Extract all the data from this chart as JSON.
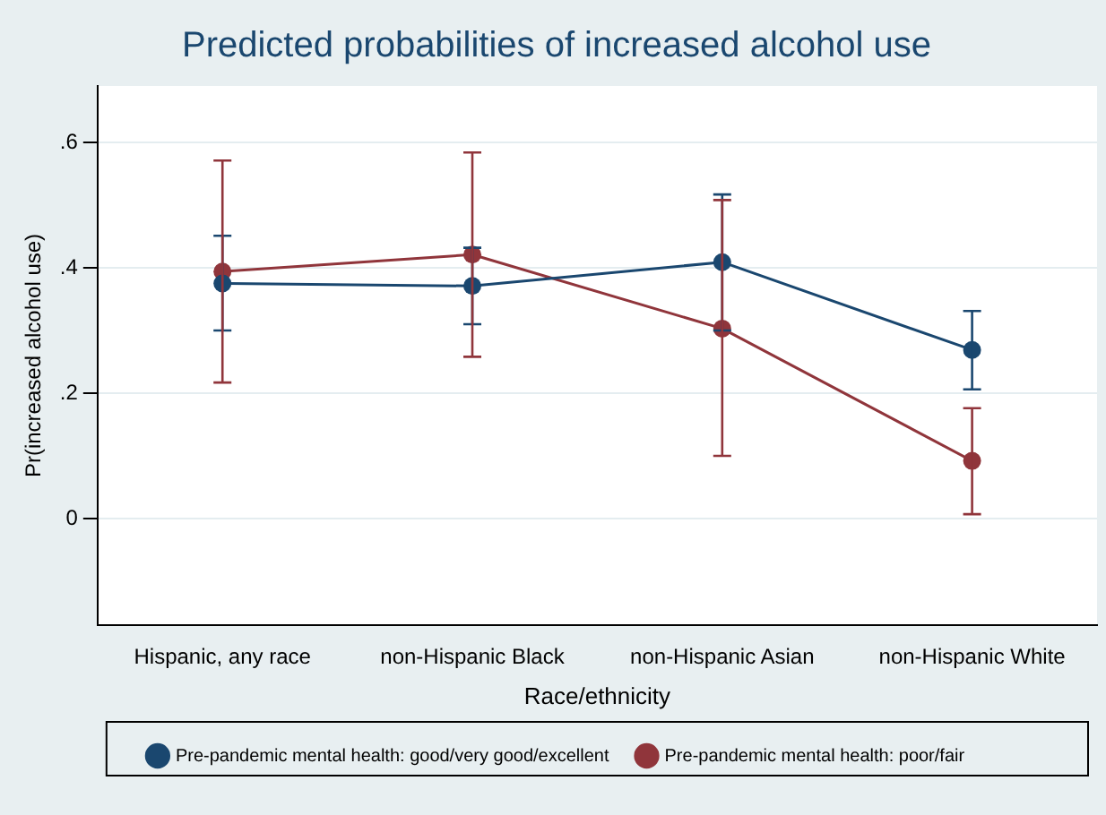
{
  "chart_data": {
    "type": "line",
    "title": "Predicted probabilities of increased alcohol use",
    "xlabel": "Race/ethnicity",
    "ylabel": "Pr(increased alcohol use)",
    "categories": [
      "Hispanic, any race",
      "non-Hispanic Black",
      "non-Hispanic Asian",
      "non-Hispanic White"
    ],
    "series": [
      {
        "name": "Pre-pandemic mental health: good/very good/excellent",
        "color": "#1a476f",
        "values": [
          0.375,
          0.371,
          0.409,
          0.269
        ],
        "errors": [
          [
            0.3,
            0.451
          ],
          [
            0.31,
            0.432
          ],
          [
            0.3,
            0.517
          ],
          [
            0.206,
            0.331
          ]
        ]
      },
      {
        "name": "Pre-pandemic mental health: poor/fair",
        "color": "#90353b",
        "values": [
          0.394,
          0.421,
          0.303,
          0.092
        ],
        "errors": [
          [
            0.217,
            0.571
          ],
          [
            0.258,
            0.584
          ],
          [
            0.1,
            0.508
          ],
          [
            0.007,
            0.176
          ]
        ]
      }
    ],
    "ylim": [
      -0.17,
      0.69
    ],
    "yticks": [
      0,
      {
        "value": 0.2,
        "label": ".2"
      },
      {
        "value": 0.4,
        "label": ".4"
      },
      {
        "value": 0.6,
        "label": ".6"
      }
    ],
    "grid": "y",
    "legend": "bottom",
    "marker": "circle",
    "line_style": "solid"
  }
}
